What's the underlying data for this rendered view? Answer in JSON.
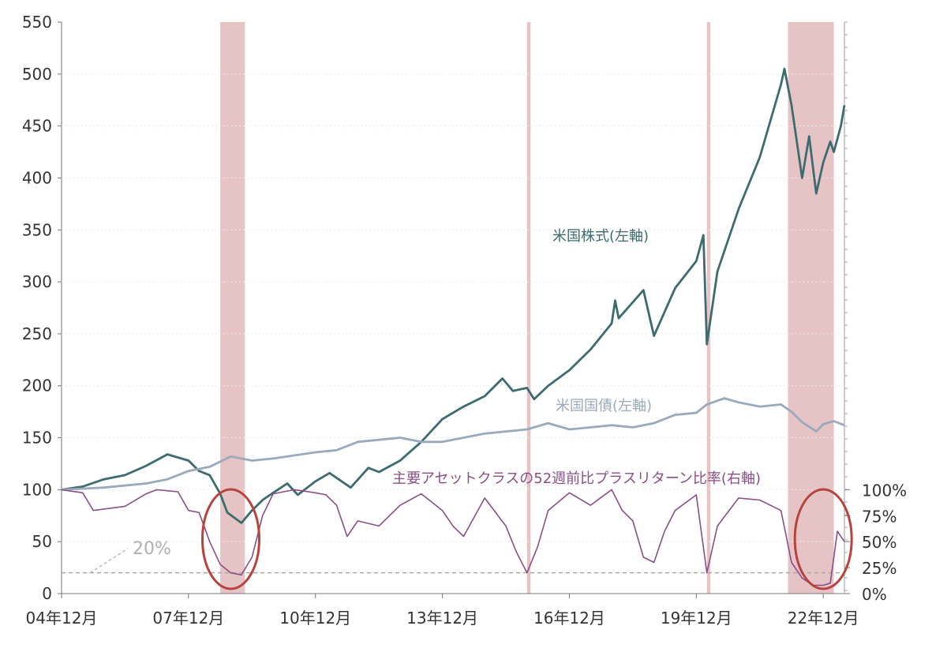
{
  "chart_data": {
    "type": "line",
    "title": "",
    "x_start": "04年12月",
    "x_end": "23年06月",
    "x_ticks": [
      "04年12月",
      "07年12月",
      "10年12月",
      "13年12月",
      "16年12月",
      "19年12月",
      "22年12月"
    ],
    "y_left": {
      "ticks": [
        "0",
        "50",
        "100",
        "150",
        "200",
        "250",
        "300",
        "350",
        "400",
        "450",
        "500",
        "550"
      ],
      "range": [
        0,
        550
      ]
    },
    "y_right": {
      "ticks": [
        "0%",
        "25%",
        "50%",
        "75%",
        "100%"
      ],
      "range": [
        0,
        100
      ]
    },
    "threshold": {
      "value": 20,
      "axis": "left",
      "label": "20%"
    },
    "shaded_periods": [
      {
        "start": "08年09月",
        "end": "08年10月"
      },
      {
        "start": "08年11月",
        "end": "08年12月"
      },
      {
        "start": "09年01月",
        "end": "09年03月"
      },
      {
        "start": "15年12月",
        "end": "15年12月"
      },
      {
        "start": "20年03月",
        "end": "20年03月"
      },
      {
        "start": "22年02月",
        "end": "23年02月"
      }
    ],
    "annotations": [
      {
        "type": "ellipse",
        "near": "08年12月"
      },
      {
        "type": "ellipse",
        "near": "22年12月"
      }
    ],
    "series": [
      {
        "name": "米国株式(左軸)",
        "axis": "left",
        "color": "#3d6b6e",
        "points": [
          [
            "04-12",
            100
          ],
          [
            "05-06",
            103
          ],
          [
            "05-12",
            110
          ],
          [
            "06-06",
            114
          ],
          [
            "06-12",
            123
          ],
          [
            "07-06",
            134
          ],
          [
            "07-12",
            128
          ],
          [
            "08-03",
            118
          ],
          [
            "08-06",
            114
          ],
          [
            "08-09",
            96
          ],
          [
            "08-11",
            78
          ],
          [
            "09-03",
            68
          ],
          [
            "09-06",
            80
          ],
          [
            "09-09",
            90
          ],
          [
            "09-12",
            97
          ],
          [
            "10-04",
            106
          ],
          [
            "10-07",
            95
          ],
          [
            "10-12",
            108
          ],
          [
            "11-04",
            116
          ],
          [
            "11-10",
            102
          ],
          [
            "12-03",
            121
          ],
          [
            "12-06",
            117
          ],
          [
            "12-12",
            128
          ],
          [
            "13-06",
            146
          ],
          [
            "13-12",
            168
          ],
          [
            "14-06",
            180
          ],
          [
            "14-12",
            190
          ],
          [
            "15-05",
            207
          ],
          [
            "15-08",
            195
          ],
          [
            "15-12",
            198
          ],
          [
            "16-02",
            187
          ],
          [
            "16-06",
            200
          ],
          [
            "16-12",
            215
          ],
          [
            "17-06",
            235
          ],
          [
            "17-12",
            260
          ],
          [
            "18-01",
            282
          ],
          [
            "18-02",
            265
          ],
          [
            "18-09",
            292
          ],
          [
            "18-12",
            248
          ],
          [
            "19-06",
            294
          ],
          [
            "19-12",
            320
          ],
          [
            "20-02",
            345
          ],
          [
            "20-03",
            240
          ],
          [
            "20-06",
            310
          ],
          [
            "20-12",
            370
          ],
          [
            "21-06",
            420
          ],
          [
            "21-12",
            490
          ],
          [
            "22-01",
            505
          ],
          [
            "22-03",
            470
          ],
          [
            "22-06",
            400
          ],
          [
            "22-08",
            440
          ],
          [
            "22-10",
            385
          ],
          [
            "22-12",
            415
          ],
          [
            "23-02",
            435
          ],
          [
            "23-03",
            425
          ],
          [
            "23-05",
            450
          ],
          [
            "23-06",
            470
          ]
        ]
      },
      {
        "name": "米国国債(左軸)",
        "axis": "left",
        "color": "#9aa9bb",
        "points": [
          [
            "04-12",
            100
          ],
          [
            "05-12",
            102
          ],
          [
            "06-12",
            106
          ],
          [
            "07-06",
            110
          ],
          [
            "07-12",
            118
          ],
          [
            "08-06",
            122
          ],
          [
            "08-12",
            132
          ],
          [
            "09-06",
            128
          ],
          [
            "09-12",
            130
          ],
          [
            "10-12",
            136
          ],
          [
            "11-06",
            138
          ],
          [
            "11-12",
            146
          ],
          [
            "12-06",
            148
          ],
          [
            "12-12",
            150
          ],
          [
            "13-06",
            146
          ],
          [
            "13-12",
            146
          ],
          [
            "14-06",
            150
          ],
          [
            "14-12",
            154
          ],
          [
            "15-06",
            156
          ],
          [
            "15-12",
            158
          ],
          [
            "16-06",
            164
          ],
          [
            "16-12",
            158
          ],
          [
            "17-06",
            160
          ],
          [
            "17-12",
            162
          ],
          [
            "18-06",
            160
          ],
          [
            "18-12",
            164
          ],
          [
            "19-06",
            172
          ],
          [
            "19-12",
            174
          ],
          [
            "20-03",
            182
          ],
          [
            "20-08",
            188
          ],
          [
            "20-12",
            184
          ],
          [
            "21-06",
            180
          ],
          [
            "21-12",
            182
          ],
          [
            "22-03",
            175
          ],
          [
            "22-06",
            165
          ],
          [
            "22-10",
            156
          ],
          [
            "22-12",
            163
          ],
          [
            "23-03",
            166
          ],
          [
            "23-06",
            162
          ]
        ]
      },
      {
        "name": "主要アセットクラスの52週前比プラスリターン比率(右軸)",
        "axis": "right",
        "color": "#8a4f86",
        "points": [
          [
            "04-12",
            100
          ],
          [
            "05-06",
            97
          ],
          [
            "05-09",
            80
          ],
          [
            "06-06",
            84
          ],
          [
            "06-12",
            96
          ],
          [
            "07-03",
            100
          ],
          [
            "07-09",
            98
          ],
          [
            "07-12",
            80
          ],
          [
            "08-03",
            78
          ],
          [
            "08-06",
            50
          ],
          [
            "08-09",
            28
          ],
          [
            "08-12",
            20
          ],
          [
            "09-03",
            18
          ],
          [
            "09-06",
            35
          ],
          [
            "09-09",
            75
          ],
          [
            "09-12",
            96
          ],
          [
            "10-06",
            100
          ],
          [
            "10-12",
            97
          ],
          [
            "11-03",
            95
          ],
          [
            "11-06",
            85
          ],
          [
            "11-09",
            55
          ],
          [
            "11-12",
            70
          ],
          [
            "12-06",
            65
          ],
          [
            "12-12",
            85
          ],
          [
            "13-06",
            96
          ],
          [
            "13-12",
            80
          ],
          [
            "14-03",
            65
          ],
          [
            "14-06",
            55
          ],
          [
            "14-12",
            92
          ],
          [
            "15-06",
            65
          ],
          [
            "15-09",
            40
          ],
          [
            "15-12",
            20
          ],
          [
            "16-03",
            45
          ],
          [
            "16-06",
            80
          ],
          [
            "16-12",
            97
          ],
          [
            "17-06",
            85
          ],
          [
            "17-12",
            100
          ],
          [
            "18-03",
            80
          ],
          [
            "18-06",
            70
          ],
          [
            "18-09",
            35
          ],
          [
            "18-12",
            30
          ],
          [
            "19-03",
            60
          ],
          [
            "19-06",
            80
          ],
          [
            "19-12",
            95
          ],
          [
            "20-03",
            20
          ],
          [
            "20-06",
            65
          ],
          [
            "20-12",
            92
          ],
          [
            "21-06",
            90
          ],
          [
            "21-12",
            80
          ],
          [
            "22-03",
            30
          ],
          [
            "22-06",
            15
          ],
          [
            "22-09",
            8
          ],
          [
            "22-12",
            8
          ],
          [
            "23-02",
            10
          ],
          [
            "23-04",
            60
          ],
          [
            "23-06",
            50
          ]
        ]
      }
    ]
  },
  "series_labels": {
    "equity": "米国株式(左軸)",
    "bonds": "米国国債(左軸)",
    "ratio": "主要アセットクラスの52週前比プラスリターン比率(右軸)"
  }
}
